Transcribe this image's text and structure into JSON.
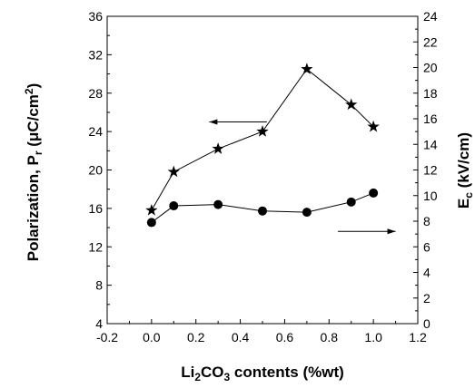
{
  "chart_data": {
    "type": "line",
    "x": [
      0.0,
      0.1,
      0.3,
      0.5,
      0.7,
      0.9,
      1.0
    ],
    "xlim": [
      -0.2,
      1.2
    ],
    "xticks": [
      -0.2,
      0.0,
      0.2,
      0.4,
      0.6,
      0.8,
      1.0,
      1.2
    ],
    "xtick_labels": [
      "-0.2",
      "0.0",
      "0.2",
      "0.4",
      "0.6",
      "0.8",
      "1.0",
      "1.2"
    ],
    "ylim_left": [
      4,
      36
    ],
    "yticks_left": [
      4,
      8,
      12,
      16,
      20,
      24,
      28,
      32,
      36
    ],
    "ytick_labels_left": [
      "4",
      "8",
      "12",
      "16",
      "20",
      "24",
      "28",
      "32",
      "36"
    ],
    "ylim_right": [
      0,
      24
    ],
    "yticks_right": [
      0,
      2,
      4,
      6,
      8,
      10,
      12,
      14,
      16,
      18,
      20,
      22,
      24
    ],
    "ytick_labels_right": [
      "0",
      "2",
      "4",
      "6",
      "8",
      "10",
      "12",
      "14",
      "16",
      "18",
      "20",
      "22",
      "24"
    ],
    "xlabel": {
      "part1": "Li",
      "sub1": "2",
      "part2": "CO",
      "sub2": "3",
      "part3": " contents (%wt)"
    },
    "ylabel_left": {
      "part1": "Polarization, P",
      "sub1": "r",
      "part2": " (μC/cm",
      "sup1": "2",
      "part3": ")"
    },
    "ylabel_right": {
      "part1": "E",
      "sub1": "c",
      "part2": " (kV/cm)"
    },
    "series": [
      {
        "axis": "left",
        "marker": "star",
        "values": [
          15.8,
          19.8,
          22.2,
          24.0,
          30.5,
          26.8,
          24.5
        ]
      },
      {
        "axis": "right",
        "marker": "circle",
        "values": [
          7.9,
          9.2,
          9.3,
          8.8,
          8.7,
          9.5,
          10.2
        ]
      }
    ],
    "annotations": [
      {
        "type": "arrow",
        "direction": "left",
        "axis": "left",
        "x_from": 0.52,
        "x_to": 0.26,
        "y": 25.0
      },
      {
        "type": "arrow",
        "direction": "right",
        "axis": "right",
        "x_from": 0.84,
        "x_to": 1.1,
        "y": 7.2
      }
    ],
    "grid": false,
    "legend": "none"
  }
}
